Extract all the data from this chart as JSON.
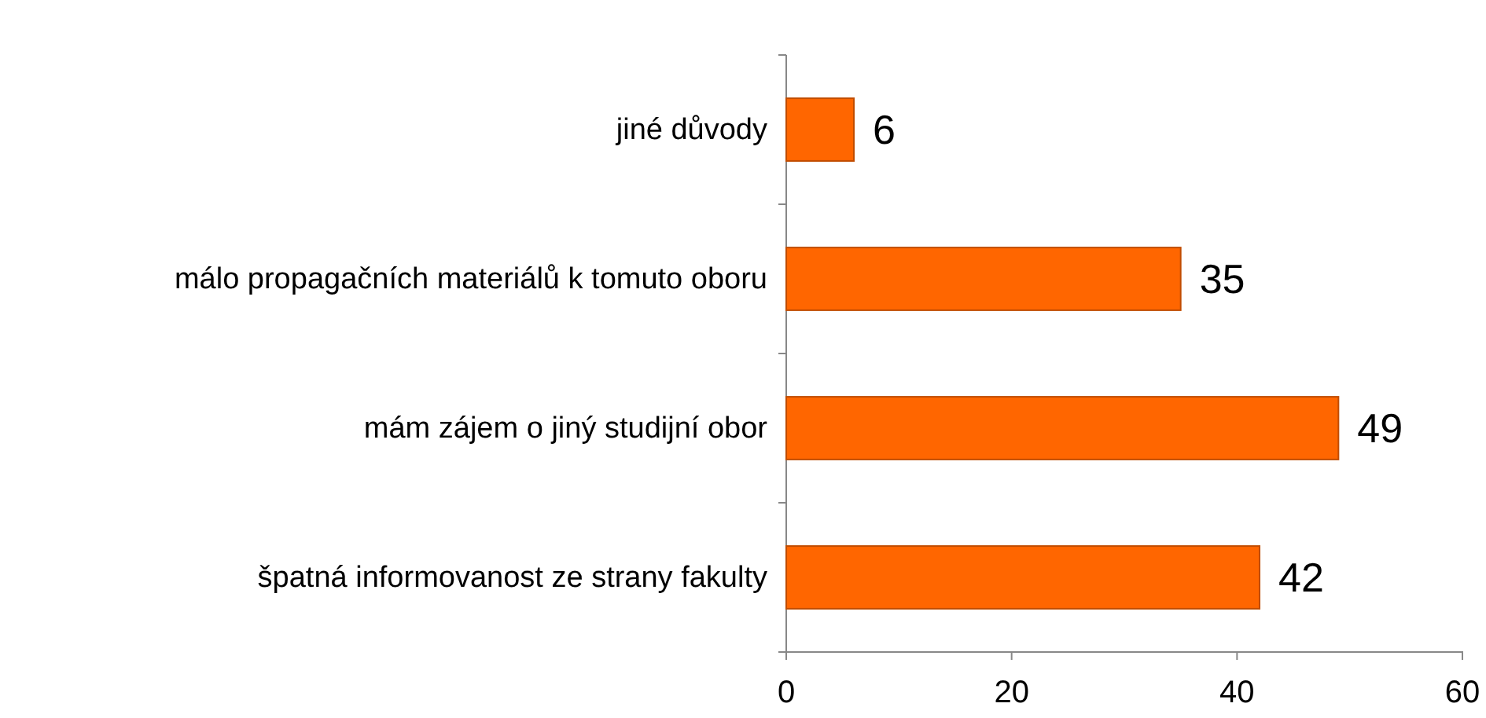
{
  "chart_data": {
    "type": "bar",
    "orientation": "horizontal",
    "categories": [
      "jiné důvody",
      "málo propagačních materiálů k tomuto oboru",
      "mám zájem o jiný studijní obor",
      "špatná informovanost ze strany fakulty"
    ],
    "values": [
      6,
      35,
      49,
      42
    ],
    "color": "#ff6600",
    "xlim": [
      0,
      60
    ],
    "xticks": [
      0,
      20,
      40,
      60
    ],
    "data_labels": true
  }
}
